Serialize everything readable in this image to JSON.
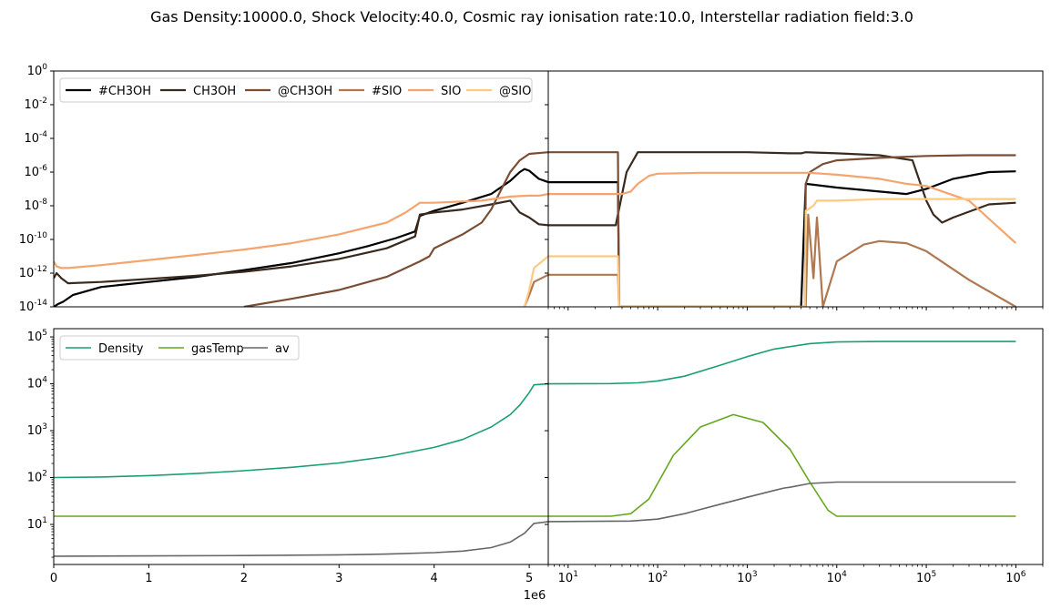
{
  "suptitle": "Gas Density:10000.0, Shock Velocity:40.0, Cosmic ray ionisation rate:10.0, Interstellar radiation field:3.0",
  "chart_data": [
    {
      "type": "line",
      "panel": "top-left",
      "x_scale": "linear",
      "y_scale": "log",
      "xlim": [
        0,
        5200000
      ],
      "ylim": [
        1e-14,
        1
      ],
      "yticks": [
        1e-14,
        1e-12,
        1e-10,
        1e-08,
        1e-06,
        0.0001,
        0.01,
        1
      ],
      "legend_position": "top-left",
      "series": [
        {
          "name": "#CH3OH",
          "color": "#000000",
          "x": [
            0,
            50000,
            100000,
            200000,
            500000,
            1000000,
            1500000,
            2000000,
            2500000,
            3000000,
            3300000,
            3600000,
            3800000,
            3850000,
            4000000,
            4300000,
            4600000,
            4800000,
            4900000,
            4950000,
            5000000,
            5100000,
            5200000
          ],
          "values": [
            1e-14,
            1.5e-14,
            2e-14,
            5e-14,
            1.5e-13,
            3e-13,
            6e-13,
            1.5e-12,
            4e-12,
            1.5e-11,
            4e-11,
            1.2e-10,
            3e-10,
            2.5e-09,
            5e-09,
            1.5e-08,
            5e-08,
            3e-07,
            1e-06,
            1.5e-06,
            1.2e-06,
            4e-07,
            2.5e-07
          ]
        },
        {
          "name": "CH3OH",
          "color": "#3a2a1e",
          "x": [
            0,
            30000,
            80000,
            150000,
            500000,
            1000000,
            1500000,
            2000000,
            2500000,
            3000000,
            3500000,
            3800000,
            3850000,
            4000000,
            4300000,
            4600000,
            4800000,
            4900000,
            5000000,
            5100000,
            5200000
          ],
          "values": [
            5e-13,
            1e-12,
            5e-13,
            2.5e-13,
            3e-13,
            4.5e-13,
            7e-13,
            1.2e-12,
            2.5e-12,
            7e-12,
            3e-11,
            1.5e-10,
            3e-09,
            4e-09,
            6e-09,
            1.2e-08,
            2e-08,
            4e-09,
            2e-09,
            8e-10,
            7e-10
          ]
        },
        {
          "name": "@CH3OH",
          "color": "#7a4e35",
          "x": [
            2000000,
            2500000,
            3000000,
            3500000,
            3700000,
            3850000,
            3950000,
            4000000,
            4300000,
            4500000,
            4600000,
            4700000,
            4800000,
            4900000,
            5000000,
            5200000
          ],
          "values": [
            1e-14,
            3e-14,
            1e-13,
            6e-13,
            2e-12,
            5e-12,
            1e-11,
            3e-11,
            2e-10,
            1e-09,
            6e-09,
            8e-08,
            1e-06,
            5e-06,
            1.2e-05,
            1.5e-05
          ]
        },
        {
          "name": "#SIO",
          "color": "#b07850",
          "x": [
            4950000,
            5000000,
            5050000,
            5200000
          ],
          "values": [
            1e-14,
            5e-14,
            3e-13,
            8e-13
          ]
        },
        {
          "name": "SIO",
          "color": "#f4a46c",
          "x": [
            0,
            30000,
            80000,
            150000,
            500000,
            1000000,
            1500000,
            2000000,
            2500000,
            3000000,
            3500000,
            3700000,
            3850000,
            4000000,
            4500000,
            4800000,
            5000000,
            5100000,
            5200000
          ],
          "values": [
            5e-12,
            2.5e-12,
            2e-12,
            2e-12,
            3e-12,
            6e-12,
            1.2e-11,
            2.5e-11,
            6e-11,
            2e-10,
            1e-09,
            4e-09,
            1.5e-08,
            1.5e-08,
            2e-08,
            3.5e-08,
            4e-08,
            4e-08,
            5e-08
          ]
        },
        {
          "name": "@SIO",
          "color": "#fdca80",
          "x": [
            4950000,
            5000000,
            5050000,
            5200000
          ],
          "values": [
            1e-14,
            1e-13,
            2e-12,
            1e-11
          ]
        }
      ]
    },
    {
      "type": "line",
      "panel": "top-right",
      "x_scale": "log",
      "y_scale": "log",
      "xlim": [
        6,
        2000000
      ],
      "ylim": [
        1e-14,
        1
      ],
      "series": [
        {
          "name": "#CH3OH",
          "color": "#000000",
          "x": [
            6,
            10,
            20,
            36,
            37,
            100,
            1000,
            4000,
            4500,
            10000,
            30000,
            60000,
            100000,
            200000,
            500000,
            1000000
          ],
          "values": [
            2.5e-07,
            2.5e-07,
            2.5e-07,
            2.5e-07,
            1e-14,
            1e-14,
            1e-14,
            1e-14,
            2e-07,
            1.2e-07,
            7e-08,
            5e-08,
            1e-07,
            4e-07,
            1e-06,
            1.1e-06
          ]
        },
        {
          "name": "CH3OH",
          "color": "#3a2a1e",
          "x": [
            6,
            20,
            34,
            45,
            60,
            200,
            1000,
            3000,
            4000,
            4500,
            10000,
            30000,
            70000,
            100000,
            120000,
            150000,
            200000,
            500000,
            1000000
          ],
          "values": [
            7e-10,
            7e-10,
            7e-10,
            1e-06,
            1.5e-05,
            1.5e-05,
            1.5e-05,
            1.3e-05,
            1.3e-05,
            1.5e-05,
            1.3e-05,
            1e-05,
            5e-06,
            2e-08,
            3e-09,
            1e-09,
            2e-09,
            1.2e-08,
            1.5e-08
          ]
        },
        {
          "name": "@CH3OH",
          "color": "#7a4e35",
          "x": [
            6,
            36,
            37,
            4400,
            4500,
            5000,
            7000,
            10000,
            30000,
            100000,
            300000,
            1000000
          ],
          "values": [
            1.5e-05,
            1.5e-05,
            1e-14,
            1e-14,
            2e-07,
            1e-06,
            3e-06,
            5e-06,
            7e-06,
            9e-06,
            1e-05,
            1e-05
          ]
        },
        {
          "name": "#SIO",
          "color": "#b07850",
          "x": [
            6,
            36,
            37,
            4500,
            4800,
            5500,
            6000,
            7000,
            10000,
            20000,
            30000,
            60000,
            100000,
            300000,
            1000000
          ],
          "values": [
            8e-13,
            8e-13,
            1e-14,
            1e-14,
            3e-09,
            5e-13,
            2e-09,
            1e-14,
            5e-12,
            5e-11,
            8e-11,
            6e-11,
            2e-11,
            4e-13,
            1e-14
          ]
        },
        {
          "name": "SIO",
          "color": "#f4a46c",
          "x": [
            6,
            20,
            40,
            50,
            60,
            80,
            100,
            300,
            1000,
            3000,
            5000,
            10000,
            30000,
            60000,
            100000,
            300000,
            1000000
          ],
          "values": [
            5e-08,
            5e-08,
            5e-08,
            7e-08,
            2e-07,
            6e-07,
            8e-07,
            9e-07,
            9e-07,
            9e-07,
            9e-07,
            7e-07,
            4e-07,
            2e-07,
            1.5e-07,
            2e-08,
            6e-11
          ]
        },
        {
          "name": "@SIO",
          "color": "#fdca80",
          "x": [
            6,
            36,
            37,
            4400,
            4500,
            5500,
            6000,
            10000,
            30000,
            100000,
            300000,
            1000000
          ],
          "values": [
            1e-11,
            1e-11,
            1e-14,
            1e-14,
            5e-09,
            1e-08,
            2e-08,
            2e-08,
            2.5e-08,
            2.5e-08,
            2.5e-08,
            2.5e-08
          ]
        }
      ]
    },
    {
      "type": "line",
      "panel": "bottom-left",
      "x_scale": "linear",
      "y_scale": "log",
      "xlim": [
        0,
        5200000
      ],
      "xticks": [
        0,
        1000000,
        2000000,
        3000000,
        4000000,
        5000000
      ],
      "xtick_labels": [
        "0",
        "1",
        "2",
        "3",
        "4",
        "5"
      ],
      "x_offset_label": "1e6",
      "ylim": [
        1.4,
        150000
      ],
      "yticks": [
        10,
        100,
        1000,
        10000,
        100000
      ],
      "legend_position": "top-left",
      "series": [
        {
          "name": "Density",
          "color": "#1b9e77",
          "x": [
            0,
            500000,
            1000000,
            1500000,
            2000000,
            2500000,
            3000000,
            3500000,
            4000000,
            4300000,
            4600000,
            4800000,
            4900000,
            5000000,
            5050000,
            5200000
          ],
          "values": [
            100,
            103,
            110,
            122,
            140,
            165,
            205,
            280,
            440,
            650,
            1200,
            2200,
            3500,
            6500,
            9500,
            10000
          ]
        },
        {
          "name": "gasTemp",
          "color": "#66a61e",
          "x": [
            0,
            5200000
          ],
          "values": [
            15,
            15
          ]
        },
        {
          "name": "av",
          "color": "#666666",
          "x": [
            0,
            1000000,
            2000000,
            3000000,
            3500000,
            4000000,
            4300000,
            4600000,
            4800000,
            4950000,
            5050000,
            5200000
          ],
          "values": [
            2.1,
            2.13,
            2.17,
            2.25,
            2.33,
            2.5,
            2.7,
            3.2,
            4.2,
            6.5,
            10.5,
            11.5
          ]
        }
      ]
    },
    {
      "type": "line",
      "panel": "bottom-right",
      "x_scale": "log",
      "y_scale": "log",
      "xlim": [
        6,
        2000000
      ],
      "xticks": [
        10,
        100,
        1000,
        10000,
        100000,
        1000000
      ],
      "ylim": [
        1.4,
        150000
      ],
      "series": [
        {
          "name": "Density",
          "color": "#1b9e77",
          "x": [
            6,
            30,
            60,
            100,
            200,
            500,
            1000,
            2000,
            5000,
            10000,
            30000,
            100000,
            1000000
          ],
          "values": [
            10000,
            10100,
            10500,
            11500,
            14500,
            25000,
            38000,
            55000,
            72000,
            78000,
            80000,
            80000,
            80000
          ]
        },
        {
          "name": "gasTemp",
          "color": "#66a61e",
          "x": [
            6,
            30,
            50,
            80,
            150,
            300,
            700,
            1500,
            3000,
            5000,
            8000,
            10000,
            15000,
            100000,
            1000000
          ],
          "values": [
            15,
            15,
            17,
            35,
            300,
            1200,
            2200,
            1500,
            400,
            80,
            20,
            15,
            15,
            15,
            15
          ]
        },
        {
          "name": "av",
          "color": "#666666",
          "x": [
            6,
            50,
            100,
            200,
            500,
            1000,
            2000,
            2600,
            3000,
            5000,
            10000,
            100000,
            1000000
          ],
          "values": [
            11.5,
            11.8,
            13,
            17,
            27,
            38,
            53,
            60,
            62,
            75,
            80,
            80,
            80
          ]
        }
      ]
    }
  ]
}
